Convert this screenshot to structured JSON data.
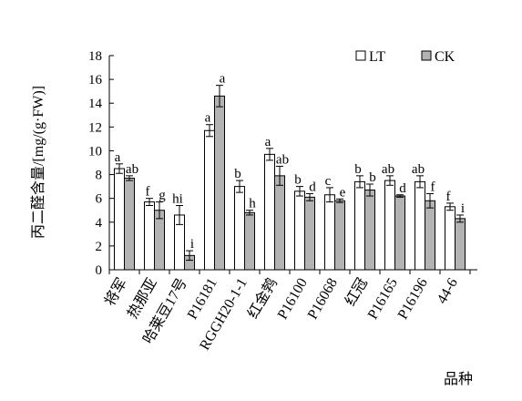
{
  "chart_data": {
    "type": "bar",
    "ylabel": "丙二醛含量/[mg/(g·FW)]",
    "xlabel": "品种",
    "ylim": [
      0,
      18
    ],
    "yticks": [
      "0",
      "2",
      "4",
      "6",
      "8",
      "10",
      "12",
      "14",
      "16",
      "18"
    ],
    "legend": "top-right",
    "grid": false,
    "categories": [
      "将军",
      "热那亚",
      "哈莱豆17号",
      "P16181",
      "RGGH20-1-1",
      "红金鹁",
      "P16100",
      "P16068",
      "红冠",
      "P16165",
      "P16196",
      "44-6"
    ],
    "series": [
      {
        "name": "LT",
        "color": "#ffffff",
        "values": [
          8.5,
          5.7,
          4.6,
          11.7,
          7.0,
          9.7,
          6.6,
          6.3,
          7.4,
          7.5,
          7.4,
          5.3
        ],
        "errors": [
          0.4,
          0.3,
          0.8,
          0.5,
          0.5,
          0.5,
          0.4,
          0.6,
          0.5,
          0.4,
          0.5,
          0.3
        ],
        "labels": [
          "a",
          "f",
          "hi",
          "a",
          "b",
          "a",
          "b",
          "c",
          "b",
          "ab",
          "ab",
          "f"
        ]
      },
      {
        "name": "CK",
        "color": "#b3b3b3",
        "values": [
          7.7,
          5.0,
          1.2,
          14.6,
          4.8,
          7.9,
          6.1,
          5.8,
          6.7,
          6.2,
          5.8,
          4.3
        ],
        "errors": [
          0.2,
          0.7,
          0.4,
          0.9,
          0.2,
          0.8,
          0.3,
          0.15,
          0.5,
          0.1,
          0.6,
          0.3
        ],
        "labels": [
          "ab",
          "g",
          "i",
          "a",
          "h",
          "ab",
          "d",
          "e",
          "b",
          "d",
          "f",
          "i"
        ]
      }
    ]
  }
}
